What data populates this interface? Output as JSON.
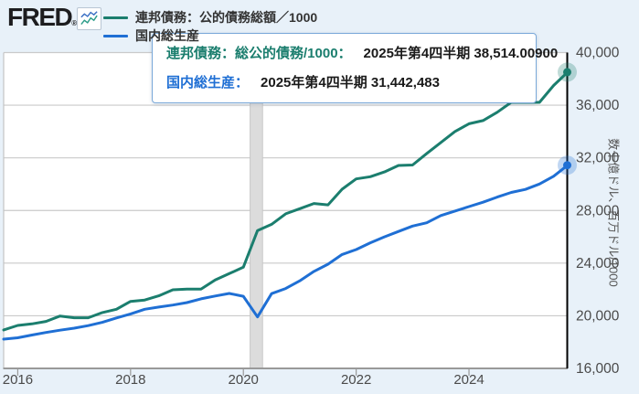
{
  "header": {
    "logo_text": "FRED",
    "logo_reg": "®",
    "legend": [
      {
        "label": "連邦債務：公的債務総額／1000",
        "color": "#1b7e6e"
      },
      {
        "label": "国内総生産",
        "color": "#1f6fd4"
      }
    ]
  },
  "tooltip": {
    "rows": [
      {
        "label": "連邦債務：総公的債務/1000：",
        "value": "2025年第4四半期 38,514.00900",
        "color": "#1b7e6e"
      },
      {
        "label": "国内総生産：",
        "value": "2025年第4四半期 31,442,483",
        "color": "#1f6fd4"
      }
    ]
  },
  "chart_data": {
    "type": "line",
    "title": "",
    "xlabel": "",
    "ylabel": "数十億ドル、百万ドル/1000",
    "ylim": [
      16000,
      40000
    ],
    "yticks": [
      16000,
      20000,
      24000,
      28000,
      32000,
      36000,
      40000
    ],
    "xticks": [
      2016,
      2018,
      2020,
      2022,
      2024
    ],
    "x_range": [
      2015.75,
      2025.75
    ],
    "grid": true,
    "legend_position": "top-left",
    "recession_band": {
      "x0": 2020.12,
      "x1": 2020.34
    },
    "hover_x": 2025.75,
    "x": [
      2015.75,
      2016.0,
      2016.25,
      2016.5,
      2016.75,
      2017.0,
      2017.25,
      2017.5,
      2017.75,
      2018.0,
      2018.25,
      2018.5,
      2018.75,
      2019.0,
      2019.25,
      2019.5,
      2019.75,
      2020.0,
      2020.25,
      2020.5,
      2020.75,
      2021.0,
      2021.25,
      2021.5,
      2021.75,
      2022.0,
      2022.25,
      2022.5,
      2022.75,
      2023.0,
      2023.25,
      2023.5,
      2023.75,
      2024.0,
      2024.25,
      2024.5,
      2024.75,
      2025.0,
      2025.25,
      2025.5,
      2025.75
    ],
    "series": [
      {
        "name": "連邦債務：公的債務総額／1000",
        "color": "#1b7e6e",
        "last_point_label": "2025年第4四半期 38,514.00900",
        "values": [
          18922,
          19265,
          19382,
          19573,
          19977,
          19846,
          19845,
          20245,
          20493,
          21090,
          21195,
          21516,
          21974,
          22028,
          22023,
          22719,
          23201,
          23687,
          26477,
          26945,
          27748,
          28133,
          28529,
          28429,
          29617,
          30401,
          30569,
          30929,
          31420,
          31458,
          32332,
          33167,
          34001,
          34587,
          34832,
          35465,
          36219,
          36214,
          36214,
          37500,
          38514.009
        ]
      },
      {
        "name": "国内総生産",
        "color": "#1f6fd4",
        "last_point_label": "2025年第4四半期 31,442,483",
        "values": [
          18222,
          18325,
          18538,
          18729,
          18905,
          19058,
          19250,
          19500,
          19831,
          20143,
          20492,
          20659,
          20813,
          21001,
          21289,
          21505,
          21695,
          21481,
          19913,
          21685,
          22068,
          22656,
          23369,
          23922,
          24654,
          25029,
          25545,
          25995,
          26408,
          26814,
          27063,
          27611,
          27957,
          28297,
          28630,
          29017,
          29374,
          29602,
          30014,
          30600,
          31442.483
        ]
      }
    ]
  },
  "colors": {
    "background": "#e8f1f9",
    "plot_background": "#ffffff",
    "gridline": "#cacaca",
    "axis_line": "#999999",
    "tick_label": "#4a4a4a",
    "recession_band": "#dcdcdc",
    "recession_band_edge": "#c6c6c6",
    "crosshair": "#000000",
    "tooltip_border": "#79a8d9"
  }
}
